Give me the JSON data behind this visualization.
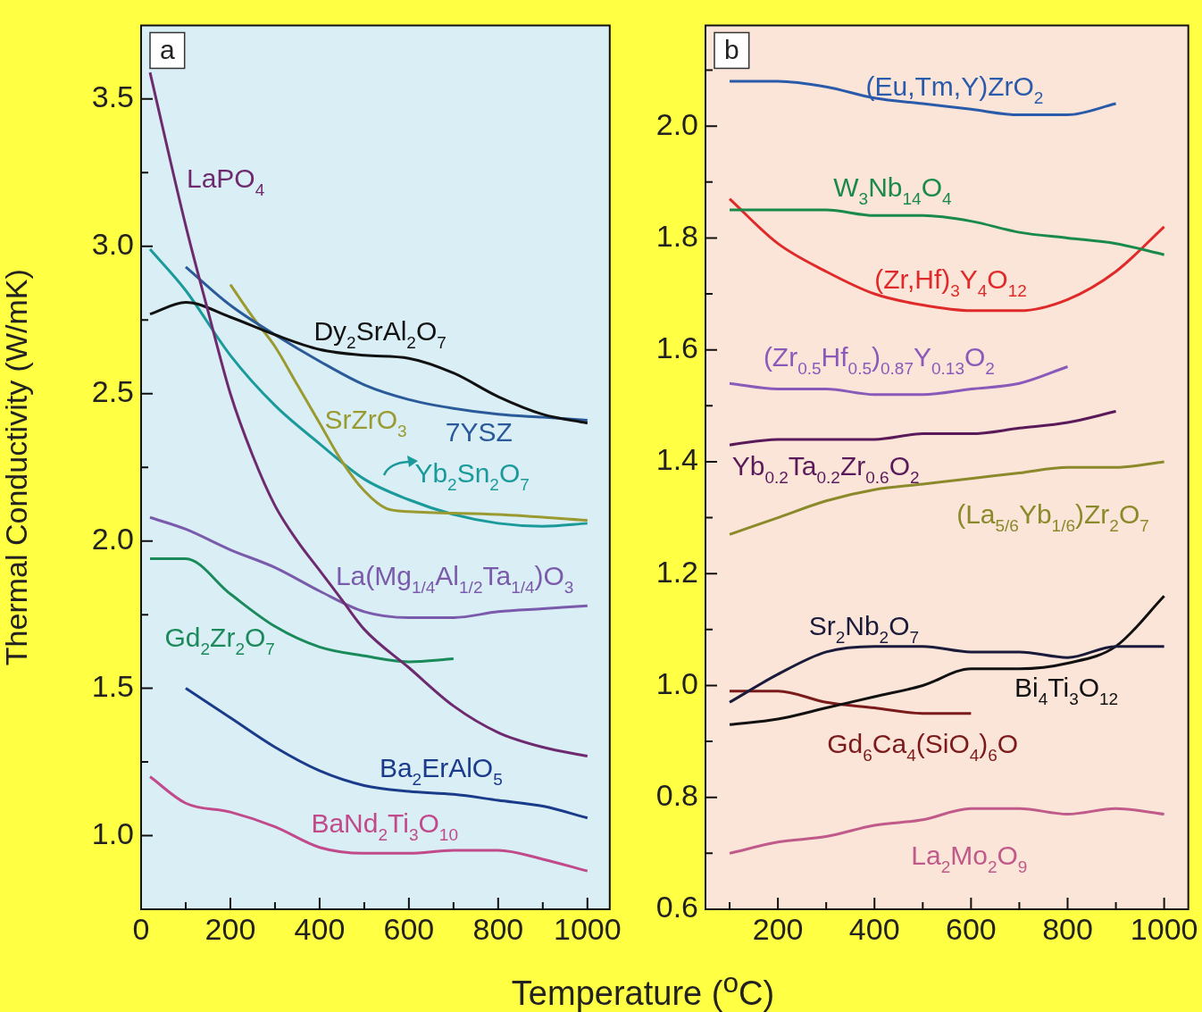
{
  "chart_data": [
    {
      "type": "line",
      "title": "a",
      "ylabel": "Thermal Conductivity (W/mK)",
      "xlabel": "Temperature ($^{o}$C)",
      "marker": "none",
      "xlim": [
        0,
        1050
      ],
      "ylim": [
        0.75,
        3.75
      ],
      "xticks": [
        0,
        {
          "value": 100,
          "label": null
        },
        200,
        {
          "value": 300,
          "label": null
        },
        400,
        {
          "value": 500,
          "label": null
        },
        600,
        {
          "value": 700,
          "label": null
        },
        800,
        {
          "value": 900,
          "label": null
        },
        1000
      ],
      "yticks": [
        {
          "value": 1,
          "label": "1.0"
        },
        {
          "value": 1.25,
          "label": null
        },
        1.5,
        {
          "value": 1.75,
          "label": null
        },
        {
          "value": 2,
          "label": "2.0"
        },
        {
          "value": 2.25,
          "label": null
        },
        2.5,
        {
          "value": 2.75,
          "label": null
        },
        {
          "value": 3,
          "label": "3.0"
        },
        {
          "value": 3.25,
          "label": null
        },
        3.5
      ],
      "series": [
        {
          "name": "LaPO$_{4}$",
          "color": "#6e2a6e",
          "x": [
            20,
            100,
            150,
            200,
            250,
            300,
            350,
            400,
            450,
            500,
            600,
            700,
            800,
            900,
            1000
          ],
          "values": [
            3.59,
            3.07,
            2.78,
            2.5,
            2.29,
            2.12,
            2.0,
            1.9,
            1.8,
            1.7,
            1.57,
            1.44,
            1.35,
            1.3,
            1.27
          ]
        },
        {
          "name": "Dy$_{2}$SrAl$_{2}$O$_{7}$",
          "color": "#111111",
          "x": [
            20,
            100,
            200,
            300,
            400,
            500,
            600,
            700,
            800,
            900,
            1000
          ],
          "values": [
            2.77,
            2.81,
            2.76,
            2.7,
            2.65,
            2.63,
            2.62,
            2.57,
            2.49,
            2.43,
            2.4
          ]
        },
        {
          "name": "7YSZ",
          "color": "#2a5a9a",
          "x": [
            100,
            200,
            300,
            400,
            500,
            600,
            700,
            800,
            900,
            1000
          ],
          "values": [
            2.93,
            2.8,
            2.7,
            2.61,
            2.53,
            2.48,
            2.45,
            2.43,
            2.42,
            2.41
          ]
        },
        {
          "name": "SrZrO$_{3}$",
          "color": "#9a9a30",
          "x": [
            200,
            250,
            300,
            350,
            400,
            450,
            500,
            550,
            600,
            800,
            1000
          ],
          "values": [
            2.87,
            2.76,
            2.66,
            2.53,
            2.4,
            2.27,
            2.17,
            2.11,
            2.1,
            2.09,
            2.07
          ]
        },
        {
          "name": "Yb$_{2}$Sn$_{2}$O$_{7}$",
          "color": "#1a9a9a",
          "x": [
            20,
            100,
            200,
            300,
            400,
            500,
            600,
            700,
            800,
            900,
            1000
          ],
          "values": [
            2.99,
            2.85,
            2.63,
            2.46,
            2.33,
            2.21,
            2.14,
            2.09,
            2.06,
            2.05,
            2.06
          ]
        },
        {
          "name": "La(Mg$_{1/4}$Al$_{1/2}$Ta$_{1/4}$)O$_{3}$",
          "color": "#7a5aaa",
          "x": [
            20,
            100,
            200,
            300,
            400,
            500,
            600,
            700,
            800,
            900,
            1000
          ],
          "values": [
            2.08,
            2.04,
            1.97,
            1.91,
            1.83,
            1.76,
            1.74,
            1.74,
            1.76,
            1.77,
            1.78
          ]
        },
        {
          "name": "Gd$_{2}$Zr$_{2}$O$_{7}$",
          "color": "#1a8a5a",
          "x": [
            20,
            100,
            200,
            300,
            400,
            500,
            600,
            700
          ],
          "values": [
            1.94,
            1.94,
            1.82,
            1.71,
            1.64,
            1.61,
            1.59,
            1.6
          ]
        },
        {
          "name": "Ba$_{2}$ErAlO$_{5}$",
          "color": "#1a3a8a",
          "x": [
            100,
            200,
            300,
            400,
            500,
            600,
            700,
            800,
            900,
            1000
          ],
          "values": [
            1.5,
            1.4,
            1.3,
            1.22,
            1.17,
            1.15,
            1.14,
            1.12,
            1.1,
            1.06
          ]
        },
        {
          "name": "BaNd$_{2}$Ti$_{3}$O$_{10}$",
          "color": "#c04a8a",
          "x": [
            20,
            100,
            200,
            300,
            400,
            500,
            600,
            700,
            800,
            900,
            1000
          ],
          "values": [
            1.2,
            1.11,
            1.08,
            1.03,
            0.96,
            0.94,
            0.94,
            0.95,
            0.95,
            0.92,
            0.88
          ]
        }
      ]
    },
    {
      "type": "line",
      "title": "b",
      "marker": "none",
      "xlim": [
        50,
        1050
      ],
      "ylim": [
        0.6,
        2.18
      ],
      "xticks": [
        {
          "value": 100,
          "label": null
        },
        200,
        {
          "value": 300,
          "label": null
        },
        400,
        {
          "value": 500,
          "label": null
        },
        600,
        {
          "value": 700,
          "label": null
        },
        800,
        {
          "value": 900,
          "label": null
        },
        1000
      ],
      "yticks": [
        0.6,
        {
          "value": 0.7,
          "label": null
        },
        0.8,
        {
          "value": 0.9,
          "label": null
        },
        {
          "value": 1,
          "label": "1.0"
        },
        {
          "value": 1.1,
          "label": null
        },
        1.2,
        {
          "value": 1.3,
          "label": null
        },
        1.4,
        {
          "value": 1.5,
          "label": null
        },
        1.6,
        {
          "value": 1.7,
          "label": null
        },
        1.8,
        {
          "value": 1.9,
          "label": null
        },
        {
          "value": 2,
          "label": "2.0"
        },
        {
          "value": 2.1,
          "label": null
        }
      ],
      "series": [
        {
          "name": "(Eu,Tm,Y)ZrO$_{2}$",
          "color": "#2a5aaa",
          "x": [
            100,
            200,
            300,
            400,
            500,
            600,
            700,
            800,
            900
          ],
          "values": [
            2.08,
            2.08,
            2.07,
            2.05,
            2.04,
            2.03,
            2.02,
            2.02,
            2.04
          ]
        },
        {
          "name": "W$_{3}$Nb$_{14}$O$_{4}$",
          "color": "#1a8a4a",
          "x": [
            100,
            200,
            300,
            400,
            500,
            600,
            700,
            800,
            900,
            1000
          ],
          "values": [
            1.85,
            1.85,
            1.85,
            1.84,
            1.84,
            1.83,
            1.81,
            1.8,
            1.79,
            1.77
          ]
        },
        {
          "name": "(Zr,Hf)$_{3}$Y$_{4}$O$_{12}$",
          "color": "#e02a2a",
          "x": [
            100,
            200,
            300,
            400,
            500,
            600,
            700,
            800,
            900,
            1000
          ],
          "values": [
            1.87,
            1.79,
            1.74,
            1.7,
            1.68,
            1.67,
            1.67,
            1.69,
            1.74,
            1.82
          ]
        },
        {
          "name": "(Zr$_{0.5}$Hf$_{0.5}$)$_{0.87}$Y$_{0.13}$O$_{2}$",
          "color": "#8a5aba",
          "x": [
            100,
            200,
            300,
            400,
            500,
            600,
            700,
            800
          ],
          "values": [
            1.54,
            1.53,
            1.53,
            1.52,
            1.52,
            1.53,
            1.54,
            1.57
          ]
        },
        {
          "name": "Yb$_{0.2}$Ta$_{0.2}$Zr$_{0.6}$O$_{2}$",
          "color": "#5a1a5a",
          "x": [
            100,
            200,
            300,
            400,
            500,
            600,
            700,
            800,
            900
          ],
          "values": [
            1.43,
            1.44,
            1.44,
            1.44,
            1.45,
            1.45,
            1.46,
            1.47,
            1.49
          ]
        },
        {
          "name": "(La$_{5/6}$Yb$_{1/6}$)Zr$_{2}$O$_{7}$",
          "color": "#8a8a2a",
          "x": [
            100,
            200,
            300,
            400,
            500,
            600,
            700,
            800,
            900,
            1000
          ],
          "values": [
            1.27,
            1.3,
            1.33,
            1.35,
            1.36,
            1.37,
            1.38,
            1.39,
            1.39,
            1.4
          ]
        },
        {
          "name": "Sr$_{2}$Nb$_{2}$O$_{7}$",
          "color": "#1a1a3a",
          "x": [
            100,
            200,
            300,
            400,
            500,
            600,
            700,
            800,
            900,
            1000
          ],
          "values": [
            0.97,
            1.02,
            1.06,
            1.07,
            1.07,
            1.06,
            1.06,
            1.05,
            1.07,
            1.07
          ]
        },
        {
          "name": "Bi$_{4}$Ti$_{3}$O$_{12}$",
          "color": "#111111",
          "x": [
            100,
            200,
            300,
            400,
            500,
            600,
            700,
            800,
            900,
            1000
          ],
          "values": [
            0.93,
            0.94,
            0.96,
            0.98,
            1.0,
            1.03,
            1.03,
            1.04,
            1.07,
            1.16
          ]
        },
        {
          "name": "Gd$_{6}$Ca$_{4}$(SiO$_{4}$)$_{6}$O",
          "color": "#7a1a1a",
          "x": [
            100,
            200,
            300,
            400,
            500,
            600
          ],
          "values": [
            0.99,
            0.99,
            0.97,
            0.96,
            0.95,
            0.95
          ]
        },
        {
          "name": "La$_{2}$Mo$_{2}$O$_{9}$",
          "color": "#c05a8a",
          "x": [
            100,
            200,
            300,
            400,
            500,
            600,
            700,
            800,
            900,
            1000
          ],
          "values": [
            0.7,
            0.72,
            0.73,
            0.75,
            0.76,
            0.78,
            0.78,
            0.77,
            0.78,
            0.77
          ]
        }
      ]
    }
  ]
}
